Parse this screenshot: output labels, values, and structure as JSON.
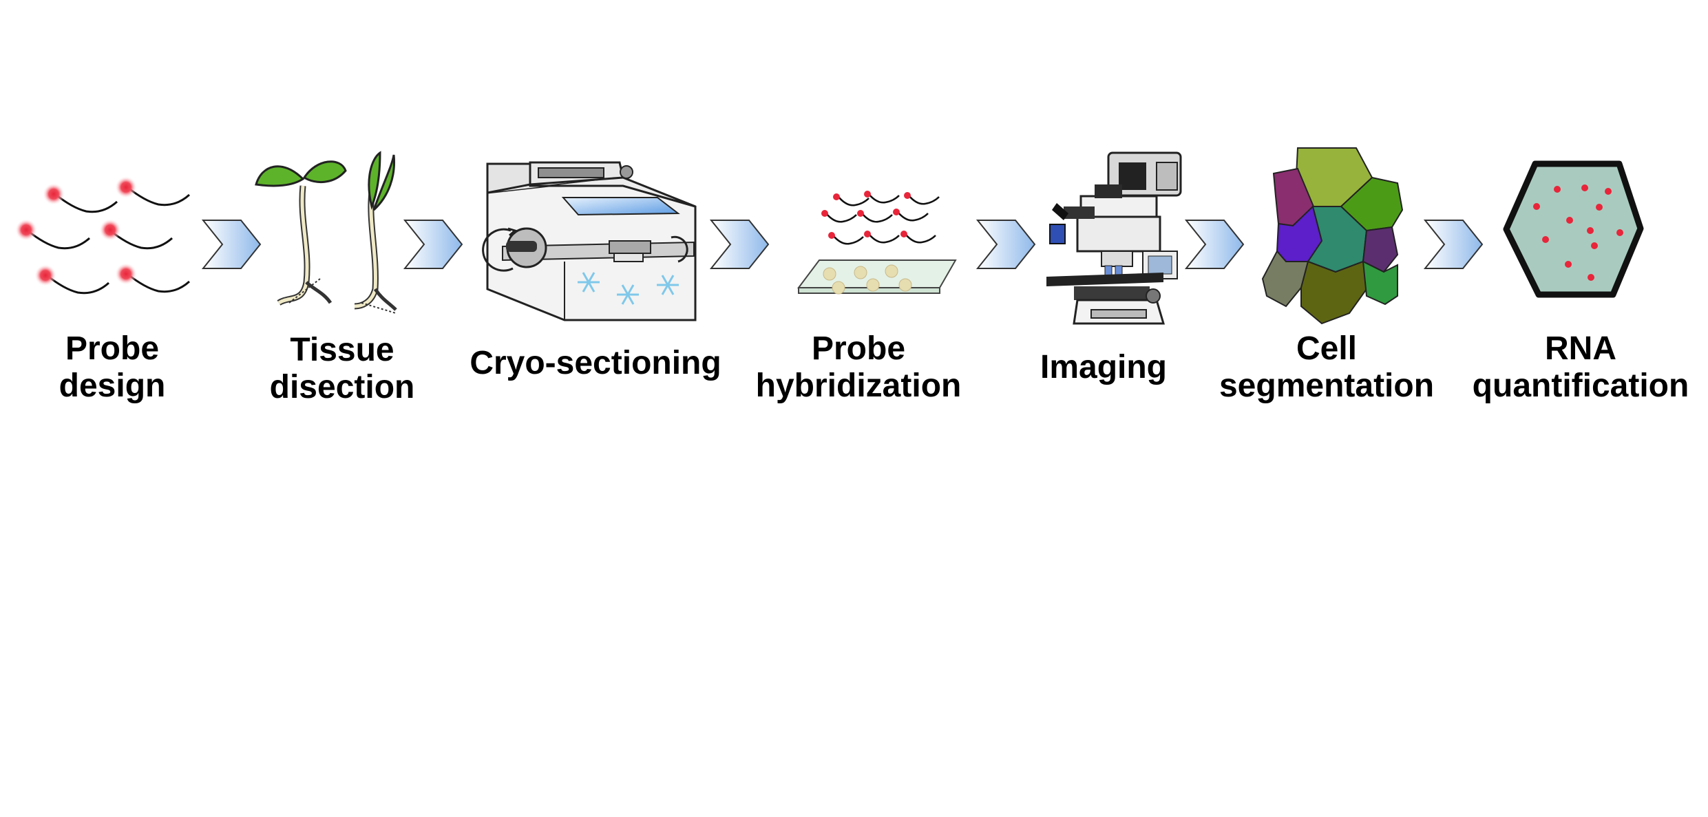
{
  "steps": [
    {
      "id": "probe-design",
      "lines": [
        "Probe",
        "design"
      ]
    },
    {
      "id": "tissue-disection",
      "lines": [
        "Tissue",
        "disection"
      ]
    },
    {
      "id": "cryo-sectioning",
      "lines": [
        "Cryo-sectioning"
      ]
    },
    {
      "id": "probe-hybridization",
      "lines": [
        "Probe",
        "hybridization"
      ]
    },
    {
      "id": "imaging",
      "lines": [
        "Imaging"
      ]
    },
    {
      "id": "cell-segmentation",
      "lines": [
        "Cell",
        "segmentation"
      ]
    },
    {
      "id": "rna-quantification",
      "lines": [
        "RNA",
        "quantification"
      ]
    }
  ],
  "icons": [
    "probe-icon",
    "seedling-icon",
    "cryostat-icon",
    "slide-icon",
    "microscope-icon",
    "cell-mosaic-icon",
    "hexagon-cell-icon"
  ],
  "colors": {
    "probe_dot": "#e8253a",
    "leaf_green": "#5db32a",
    "chevron_blue": "#9cc3ee",
    "cell_fill": "#a9cbbf",
    "snowflake": "#7fc8ea"
  }
}
